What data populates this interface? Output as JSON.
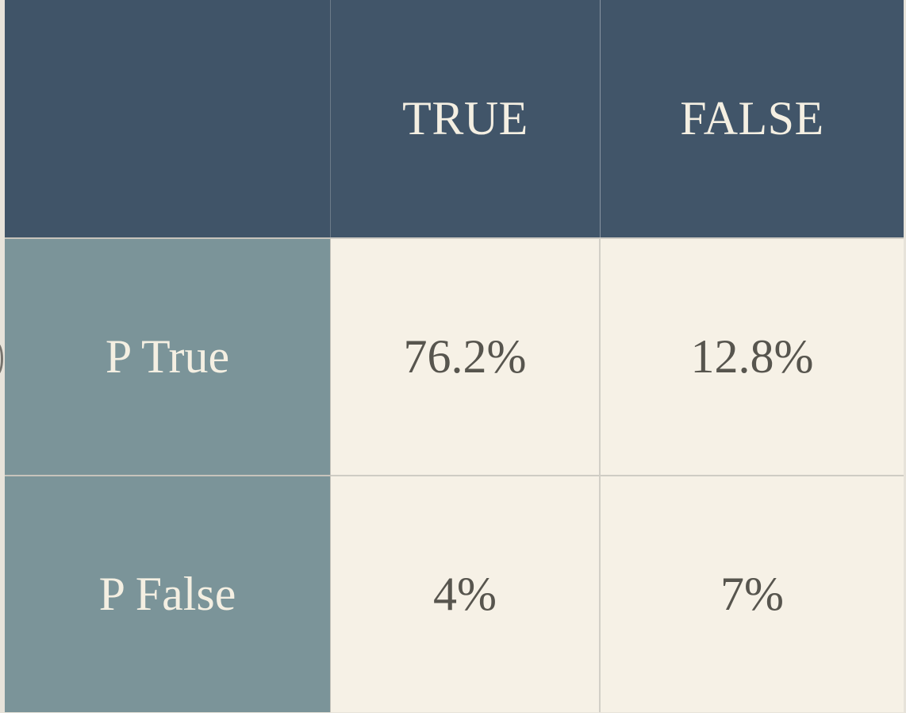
{
  "table": {
    "columns": [
      "TRUE",
      "FALSE"
    ],
    "rows": [
      {
        "label": "P True",
        "values": [
          "76.2%",
          "12.8%"
        ]
      },
      {
        "label": "P False",
        "values": [
          "4%",
          "7%"
        ]
      }
    ]
  },
  "colors": {
    "header_bg": "#415569",
    "row_header_bg": "#7b9499",
    "cell_bg": "#f6f1e6",
    "header_text": "#f4efe2",
    "cell_text": "#57554e"
  }
}
